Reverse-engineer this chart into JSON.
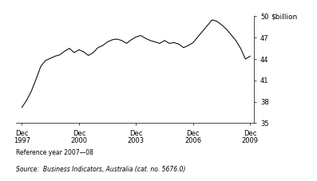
{
  "title": "",
  "ylabel": "$billion",
  "ylim": [
    35,
    50
  ],
  "yticks": [
    35,
    38,
    41,
    44,
    47,
    50
  ],
  "xlim_start": 1997.6,
  "xlim_end": 2010.1,
  "xtick_positions": [
    1997.917,
    2000.917,
    2003.917,
    2006.917,
    2009.917
  ],
  "xtick_labels": [
    "Dec\n1997",
    "Dec\n2000",
    "Dec\n2003",
    "Dec\n2006",
    "Dec\n2009"
  ],
  "line_color": "#000000",
  "line_width": 0.75,
  "background_color": "#ffffff",
  "reference_text": "Reference year 2007—08",
  "source_text": "Source:  Business Indicators, Australia (cat. no. 5676.0)",
  "dates": [
    1997.917,
    1998.167,
    1998.417,
    1998.667,
    1998.917,
    1999.167,
    1999.417,
    1999.667,
    1999.917,
    2000.167,
    2000.417,
    2000.667,
    2000.917,
    2001.167,
    2001.417,
    2001.667,
    2001.917,
    2002.167,
    2002.417,
    2002.667,
    2002.917,
    2003.167,
    2003.417,
    2003.667,
    2003.917,
    2004.167,
    2004.417,
    2004.667,
    2004.917,
    2005.167,
    2005.417,
    2005.667,
    2005.917,
    2006.167,
    2006.417,
    2006.667,
    2006.917,
    2007.167,
    2007.417,
    2007.667,
    2007.917,
    2008.167,
    2008.417,
    2008.667,
    2008.917,
    2009.167,
    2009.417,
    2009.667,
    2009.917
  ],
  "values": [
    37.2,
    38.2,
    39.5,
    41.2,
    43.0,
    43.8,
    44.1,
    44.4,
    44.6,
    45.1,
    45.5,
    44.9,
    45.3,
    45.0,
    44.5,
    44.9,
    45.6,
    45.9,
    46.4,
    46.7,
    46.8,
    46.6,
    46.2,
    46.7,
    47.1,
    47.3,
    46.9,
    46.6,
    46.4,
    46.2,
    46.6,
    46.2,
    46.3,
    46.1,
    45.6,
    45.9,
    46.3,
    47.1,
    47.9,
    48.7,
    49.5,
    49.3,
    48.8,
    48.2,
    47.4,
    46.6,
    45.5,
    44.0,
    44.4
  ]
}
